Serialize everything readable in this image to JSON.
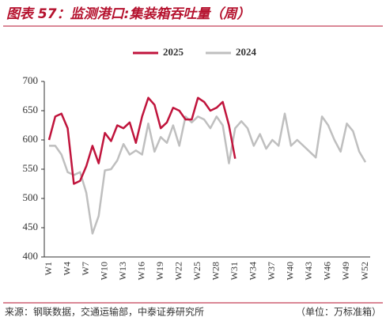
{
  "chart_data": {
    "type": "line",
    "title": "图表 57：监测港口:集装箱吞吐量（周）",
    "source": "来源：钢联数据，交通运输部，中泰证券研究所",
    "unit_note": "（单位：万标准箱）",
    "categories": [
      "W1",
      null,
      null,
      "W4",
      null,
      null,
      "W7",
      null,
      null,
      "W10",
      null,
      null,
      "W13",
      null,
      null,
      "W16",
      null,
      null,
      "W19",
      null,
      null,
      "W22",
      null,
      null,
      "W25",
      null,
      null,
      "W28",
      null,
      null,
      "W31",
      null,
      null,
      "W34",
      null,
      null,
      "W37",
      null,
      null,
      "W40",
      null,
      null,
      "W43",
      null,
      null,
      "W46",
      null,
      null,
      "W49",
      null,
      null,
      "W52"
    ],
    "series": [
      {
        "name": "2025",
        "color": "#c0143c",
        "values": [
          600,
          640,
          645,
          620,
          525,
          530,
          555,
          590,
          560,
          612,
          598,
          625,
          620,
          630,
          595,
          640,
          672,
          660,
          620,
          630,
          655,
          650,
          635,
          635,
          672,
          665,
          650,
          655,
          665,
          625,
          568,
          null,
          null,
          null,
          null,
          null,
          null,
          null,
          null,
          null,
          null,
          null,
          null,
          null,
          null,
          null,
          null,
          null,
          null,
          null,
          null,
          null
        ]
      },
      {
        "name": "2024",
        "color": "#bfbfbf",
        "values": [
          590,
          590,
          575,
          545,
          540,
          545,
          510,
          440,
          470,
          548,
          550,
          565,
          593,
          575,
          582,
          575,
          628,
          580,
          605,
          595,
          625,
          590,
          640,
          630,
          640,
          635,
          620,
          640,
          625,
          560,
          620,
          632,
          620,
          590,
          610,
          585,
          600,
          590,
          645,
          590,
          600,
          590,
          580,
          570,
          640,
          625,
          600,
          580,
          628,
          615,
          580,
          562
        ]
      }
    ],
    "ylim": [
      400,
      700
    ],
    "yticks": [
      400,
      450,
      500,
      550,
      600,
      650,
      700
    ],
    "legend": "top"
  }
}
